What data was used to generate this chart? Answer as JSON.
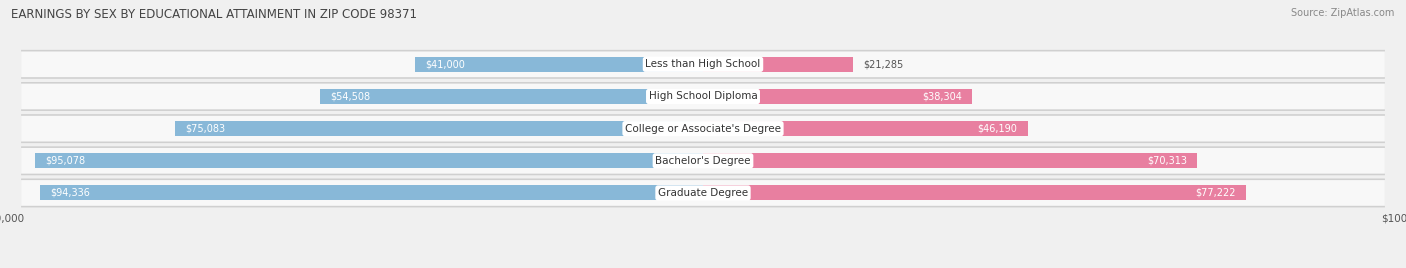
{
  "title": "EARNINGS BY SEX BY EDUCATIONAL ATTAINMENT IN ZIP CODE 98371",
  "source": "Source: ZipAtlas.com",
  "categories": [
    "Less than High School",
    "High School Diploma",
    "College or Associate's Degree",
    "Bachelor's Degree",
    "Graduate Degree"
  ],
  "male_values": [
    41000,
    54508,
    75083,
    95078,
    94336
  ],
  "female_values": [
    21285,
    38304,
    46190,
    70313,
    77222
  ],
  "male_color": "#88b8d8",
  "female_color": "#e87fa0",
  "max_val": 100000,
  "bar_height": 0.62,
  "bg_outer": "#e8e8e8",
  "bg_inner_light": "#f5f5f5",
  "bg_inner_dark": "#ececec",
  "row_bg": "#dcdcdc"
}
